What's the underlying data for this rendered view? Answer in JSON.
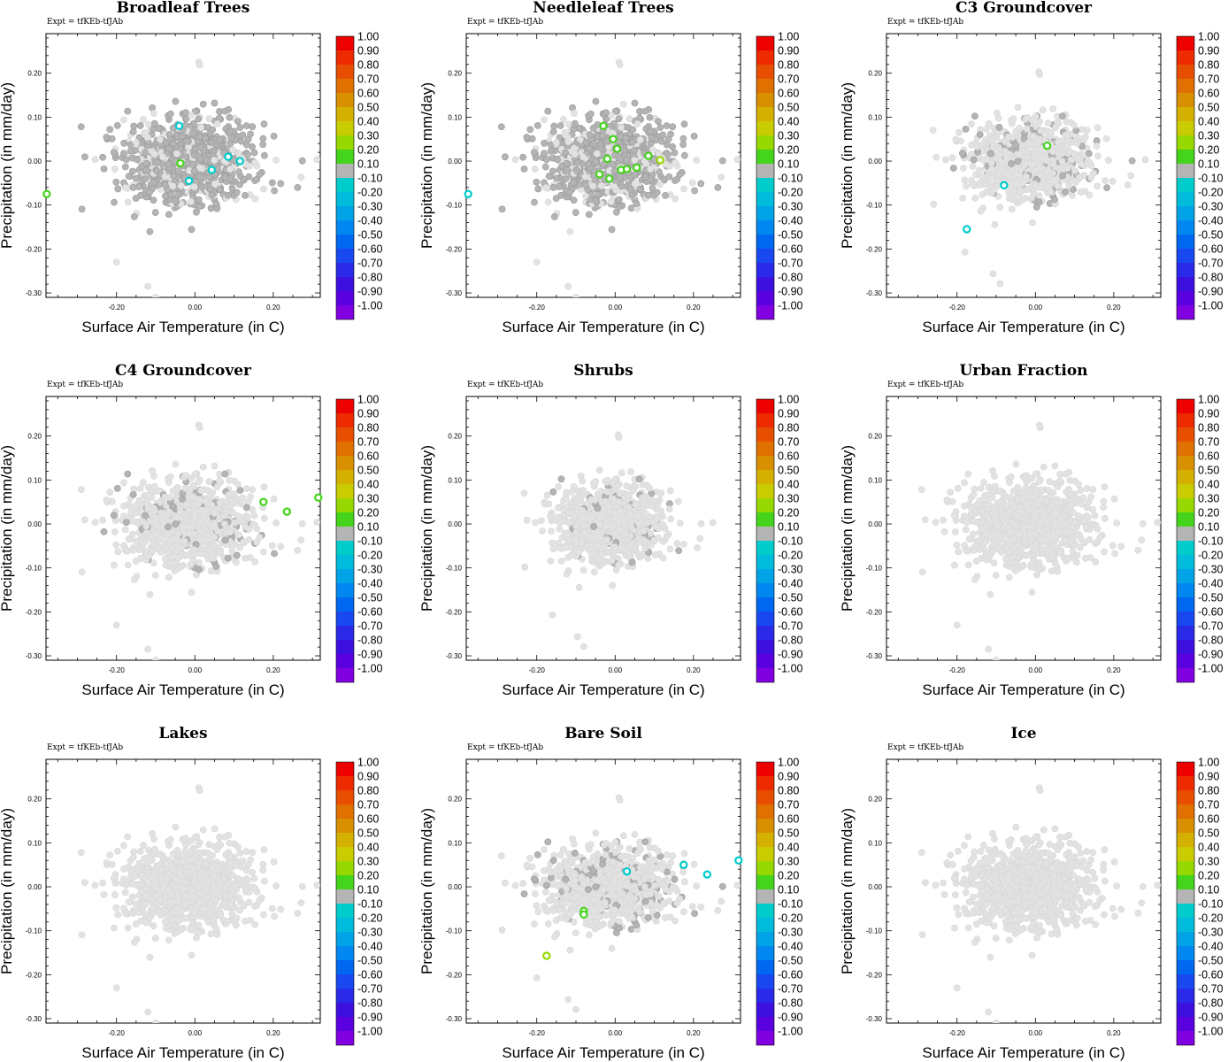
{
  "figure": {
    "expt_label": "Expt = tfKEb-tfJAb",
    "xlabel": "Surface Air Temperature (in C)",
    "ylabel": "Precipitation (in mm/day)"
  },
  "chart_data": [
    {
      "type": "scatter",
      "title": "Broadleaf Trees",
      "xlabel": "Surface Air Temperature (in C)",
      "ylabel": "Precipitation (in mm/day)",
      "xlim": [
        -0.38,
        0.32
      ],
      "ylim": [
        -0.31,
        0.29
      ],
      "xticks": [
        "-0.20",
        "0.00",
        "0.20"
      ],
      "yticks": [
        "-0.30",
        "-0.20",
        "-0.10",
        "0.00",
        "0.10",
        "0.20"
      ],
      "background_cloud": "light-grey",
      "grey_band_density": 0.75,
      "grey_band_scale": [
        1.0,
        1.0
      ],
      "highlighted": [
        {
          "x": -0.037,
          "y": -0.005,
          "r": 0.1
        },
        {
          "x": -0.378,
          "y": -0.075,
          "r": 0.1
        },
        {
          "x": -0.015,
          "y": -0.045,
          "r": -0.2
        },
        {
          "x": 0.043,
          "y": -0.02,
          "r": -0.2
        },
        {
          "x": 0.085,
          "y": 0.01,
          "r": -0.2
        },
        {
          "x": 0.115,
          "y": 0.0,
          "r": -0.2
        },
        {
          "x": -0.04,
          "y": 0.08,
          "r": -0.2
        }
      ]
    },
    {
      "type": "scatter",
      "title": "Needleleaf Trees",
      "xlabel": "Surface Air Temperature (in C)",
      "ylabel": "Precipitation (in mm/day)",
      "xlim": [
        -0.38,
        0.32
      ],
      "ylim": [
        -0.31,
        0.29
      ],
      "xticks": [
        "-0.20",
        "0.00",
        "0.20"
      ],
      "yticks": [
        "-0.30",
        "-0.20",
        "-0.10",
        "0.00",
        "0.10",
        "0.20"
      ],
      "background_cloud": "light-grey",
      "grey_band_density": 0.7,
      "grey_band_scale": [
        1.0,
        1.0
      ],
      "highlighted": [
        {
          "x": -0.03,
          "y": 0.08,
          "r": 0.1
        },
        {
          "x": -0.005,
          "y": 0.05,
          "r": 0.1
        },
        {
          "x": 0.005,
          "y": 0.028,
          "r": 0.1
        },
        {
          "x": -0.04,
          "y": -0.03,
          "r": 0.1
        },
        {
          "x": -0.015,
          "y": -0.04,
          "r": 0.1
        },
        {
          "x": 0.015,
          "y": -0.02,
          "r": 0.1
        },
        {
          "x": 0.03,
          "y": -0.018,
          "r": 0.1
        },
        {
          "x": 0.055,
          "y": -0.015,
          "r": 0.1
        },
        {
          "x": 0.085,
          "y": 0.012,
          "r": 0.1
        },
        {
          "x": -0.02,
          "y": 0.005,
          "r": 0.1
        },
        {
          "x": 0.115,
          "y": 0.002,
          "r": 0.2
        },
        {
          "x": -0.375,
          "y": -0.075,
          "r": -0.2
        }
      ]
    },
    {
      "type": "scatter",
      "title": "C3 Groundcover",
      "xlabel": "Surface Air Temperature (in C)",
      "ylabel": "Precipitation (in mm/day)",
      "xlim": [
        -0.38,
        0.32
      ],
      "ylim": [
        -0.31,
        0.29
      ],
      "xticks": [
        "-0.20",
        "0.00",
        "0.20"
      ],
      "yticks": [
        "-0.30",
        "-0.20",
        "-0.10",
        "0.00",
        "0.10",
        "0.20"
      ],
      "background_cloud": "light-grey",
      "grey_band_density": 0.14,
      "grey_band_scale": [
        0.9,
        0.9
      ],
      "highlighted": [
        {
          "x": 0.03,
          "y": 0.035,
          "r": 0.1
        },
        {
          "x": -0.08,
          "y": -0.055,
          "r": -0.2
        },
        {
          "x": -0.175,
          "y": -0.155,
          "r": -0.2
        }
      ]
    },
    {
      "type": "scatter",
      "title": "C4 Groundcover",
      "xlabel": "Surface Air Temperature (in C)",
      "ylabel": "Precipitation (in mm/day)",
      "xlim": [
        -0.38,
        0.32
      ],
      "ylim": [
        -0.31,
        0.29
      ],
      "xticks": [
        "-0.20",
        "0.00",
        "0.20"
      ],
      "yticks": [
        "-0.30",
        "-0.20",
        "-0.10",
        "0.00",
        "0.10",
        "0.20"
      ],
      "background_cloud": "light-grey",
      "grey_band_density": 0.1,
      "grey_band_scale": [
        1.0,
        1.0
      ],
      "highlighted": [
        {
          "x": 0.175,
          "y": 0.05,
          "r": 0.1
        },
        {
          "x": 0.235,
          "y": 0.028,
          "r": 0.1
        },
        {
          "x": 0.315,
          "y": 0.06,
          "r": 0.1
        }
      ]
    },
    {
      "type": "scatter",
      "title": "Shrubs",
      "xlabel": "Surface Air Temperature (in C)",
      "ylabel": "Precipitation (in mm/day)",
      "xlim": [
        -0.38,
        0.32
      ],
      "ylim": [
        -0.31,
        0.29
      ],
      "xticks": [
        "-0.20",
        "0.00",
        "0.20"
      ],
      "yticks": [
        "-0.30",
        "-0.20",
        "-0.10",
        "0.00",
        "0.10",
        "0.20"
      ],
      "background_cloud": "light-grey",
      "grey_band_density": 0.05,
      "grey_band_scale": [
        0.8,
        0.9
      ],
      "highlighted": []
    },
    {
      "type": "scatter",
      "title": "Urban Fraction",
      "xlabel": "Surface Air Temperature (in C)",
      "ylabel": "Precipitation (in mm/day)",
      "xlim": [
        -0.38,
        0.32
      ],
      "ylim": [
        -0.31,
        0.29
      ],
      "xticks": [
        "-0.20",
        "0.00",
        "0.20"
      ],
      "yticks": [
        "-0.30",
        "-0.20",
        "-0.10",
        "0.00",
        "0.10",
        "0.20"
      ],
      "background_cloud": "light-grey",
      "grey_band_density": 0,
      "grey_band_scale": [
        1.0,
        1.0
      ],
      "highlighted": []
    },
    {
      "type": "scatter",
      "title": "Lakes",
      "xlabel": "Surface Air Temperature (in C)",
      "ylabel": "Precipitation (in mm/day)",
      "xlim": [
        -0.38,
        0.32
      ],
      "ylim": [
        -0.31,
        0.29
      ],
      "xticks": [
        "-0.20",
        "0.00",
        "0.20"
      ],
      "yticks": [
        "-0.30",
        "-0.20",
        "-0.10",
        "0.00",
        "0.10",
        "0.20"
      ],
      "background_cloud": "light-grey",
      "grey_band_density": 0,
      "grey_band_scale": [
        1.0,
        1.0
      ],
      "highlighted": []
    },
    {
      "type": "scatter",
      "title": "Bare Soil",
      "xlabel": "Surface Air Temperature (in C)",
      "ylabel": "Precipitation (in mm/day)",
      "xlim": [
        -0.38,
        0.32
      ],
      "ylim": [
        -0.31,
        0.29
      ],
      "xticks": [
        "-0.20",
        "0.00",
        "0.20"
      ],
      "yticks": [
        "-0.30",
        "-0.20",
        "-0.10",
        "0.00",
        "0.10",
        "0.20"
      ],
      "background_cloud": "light-grey",
      "grey_band_density": 0.14,
      "grey_band_scale": [
        1.0,
        0.9
      ],
      "highlighted": [
        {
          "x": -0.08,
          "y": -0.055,
          "r": 0.1
        },
        {
          "x": -0.08,
          "y": -0.063,
          "r": 0.1
        },
        {
          "x": -0.175,
          "y": -0.157,
          "r": 0.2
        },
        {
          "x": 0.03,
          "y": 0.035,
          "r": -0.2
        },
        {
          "x": 0.175,
          "y": 0.05,
          "r": -0.2
        },
        {
          "x": 0.235,
          "y": 0.028,
          "r": -0.2
        },
        {
          "x": 0.315,
          "y": 0.06,
          "r": -0.2
        }
      ]
    },
    {
      "type": "scatter",
      "title": "Ice",
      "xlabel": "Surface Air Temperature (in C)",
      "ylabel": "Precipitation (in mm/day)",
      "xlim": [
        -0.38,
        0.32
      ],
      "ylim": [
        -0.31,
        0.29
      ],
      "xticks": [
        "-0.20",
        "0.00",
        "0.20"
      ],
      "yticks": [
        "-0.30",
        "-0.20",
        "-0.10",
        "0.00",
        "0.10",
        "0.20"
      ],
      "background_cloud": "light-grey",
      "grey_band_density": 0,
      "grey_band_scale": [
        1.0,
        1.0
      ],
      "highlighted": []
    }
  ],
  "colorbar": {
    "labels": [
      "1.00",
      "0.90",
      "0.80",
      "0.70",
      "0.60",
      "0.50",
      "0.40",
      "0.30",
      "0.20",
      "0.10",
      "-0.10",
      "-0.20",
      "-0.30",
      "-0.40",
      "-0.50",
      "-0.60",
      "-0.70",
      "-0.80",
      "-0.90",
      "-1.00"
    ],
    "colors": [
      "#ee0000",
      "#ee2a00",
      "#e84e00",
      "#e07000",
      "#d89000",
      "#d4b000",
      "#c8cc00",
      "#96d800",
      "#44d41c",
      "#b4b4b4",
      "#00cccc",
      "#00bcdc",
      "#00a4e6",
      "#0088f0",
      "#0068f0",
      "#1a48f0",
      "#2a2ae8",
      "#3e10e0",
      "#5a00e0",
      "#8000e0"
    ],
    "grey_colors": {
      "light": "#e2e2e2",
      "medium": "#b4b4b4"
    }
  }
}
